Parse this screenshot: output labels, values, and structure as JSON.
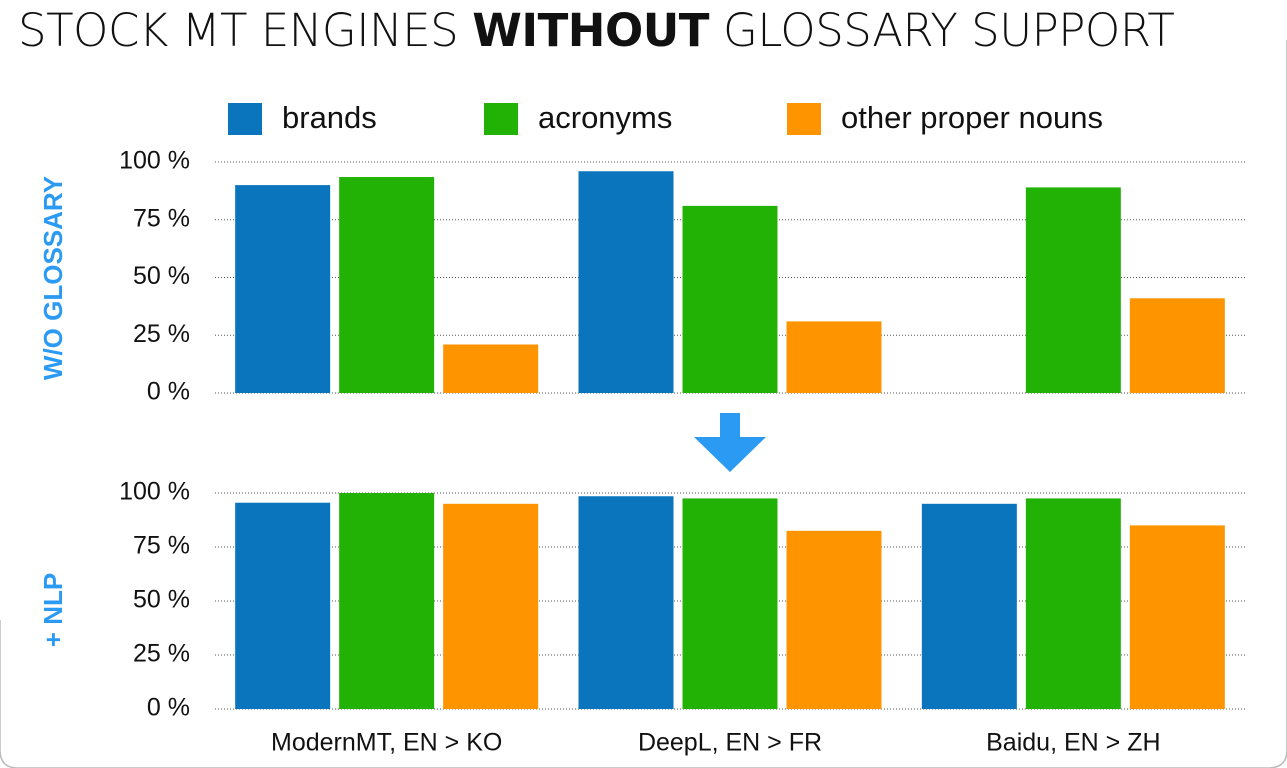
{
  "title_parts": [
    "STOCK MT ENGINES",
    "WITHOUT",
    "GLOSSARY SUPPORT"
  ],
  "chart_data": [
    {
      "type": "bar",
      "y_label": "W/O GLOSSARY",
      "categories": [
        null,
        null,
        null
      ],
      "series": [
        {
          "name": "brands",
          "color": "#0a75bd",
          "values": [
            90,
            96,
            0
          ]
        },
        {
          "name": "acronyms",
          "color": "#21b205",
          "values": [
            93.5,
            81,
            89
          ]
        },
        {
          "name": "other proper nouns",
          "color": "#fd9400",
          "values": [
            21,
            31,
            41
          ]
        }
      ],
      "ylim": [
        0,
        100
      ],
      "yticks": [
        {
          "value": 0,
          "label": "0 %"
        },
        {
          "value": 25,
          "label": "25 %"
        },
        {
          "value": 50,
          "label": "50 %"
        },
        {
          "value": 75,
          "label": "75 %"
        },
        {
          "value": 100,
          "label": "100 %"
        }
      ],
      "grid": true,
      "legend": "top"
    },
    {
      "type": "bar",
      "y_label": "+ NLP",
      "categories": [
        "ModernMT, EN > KO",
        "DeepL, EN > FR",
        "Baidu, EN > ZH"
      ],
      "series": [
        {
          "color": "#0a75bd",
          "values": [
            95.5,
            98.5,
            95
          ]
        },
        {
          "color": "#21b205",
          "values": [
            100,
            97.5,
            97.5
          ]
        },
        {
          "color": "#fd9400",
          "values": [
            95,
            82.5,
            85
          ]
        }
      ],
      "ylim": [
        0,
        100
      ],
      "yticks": [
        {
          "value": 0,
          "label": "0 %"
        },
        {
          "value": 25,
          "label": "25 %"
        },
        {
          "value": 50,
          "label": "50 %"
        },
        {
          "value": 75,
          "label": "75 %"
        },
        {
          "value": 100,
          "label": "100 %"
        }
      ],
      "grid": true
    }
  ]
}
